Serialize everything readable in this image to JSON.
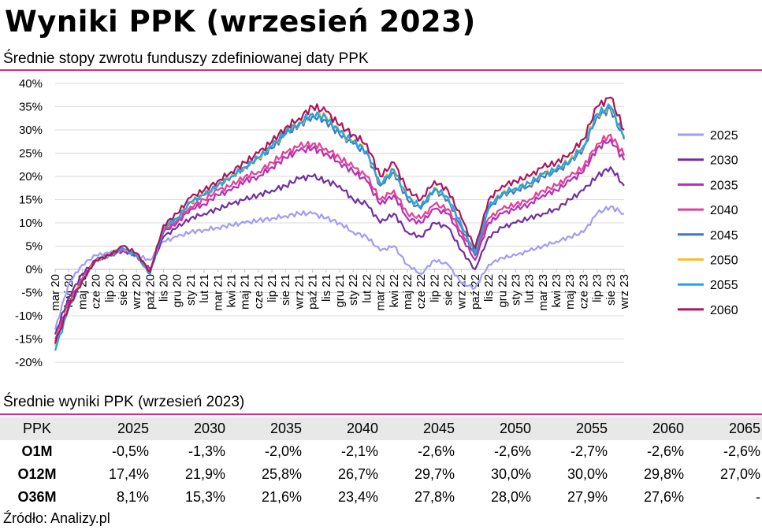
{
  "title": "Wyniki PPK (wrzesień 2023)",
  "subtitle": "Średnie stopy zwrotu funduszy zdefiniowanej daty PPK",
  "table_title": "Średnie wyniki PPK (wrzesień 2023)",
  "source": "Źródło: Analizy.pl",
  "colors": {
    "accent": "#e0278c",
    "header_bg": "#e8e8e8",
    "grid": "#d9d9d9"
  },
  "table": {
    "header": [
      "PPK",
      "2025",
      "2030",
      "2035",
      "2040",
      "2045",
      "2050",
      "2055",
      "2060",
      "2065"
    ],
    "rows": [
      [
        "O1M",
        "-0,5%",
        "-1,3%",
        "-2,0%",
        "-2,1%",
        "-2,6%",
        "-2,6%",
        "-2,7%",
        "-2,6%",
        "-2,6%"
      ],
      [
        "O12M",
        "17,4%",
        "21,9%",
        "25,8%",
        "26,7%",
        "29,7%",
        "30,0%",
        "30,0%",
        "29,8%",
        "27,0%"
      ],
      [
        "O36M",
        "8,1%",
        "15,3%",
        "21,6%",
        "23,4%",
        "27,8%",
        "28,0%",
        "27,9%",
        "27,6%",
        "-"
      ]
    ]
  },
  "chart_data": {
    "type": "line",
    "ylim": [
      -20,
      40
    ],
    "grid": true,
    "legend": "right",
    "y_ticks": [
      "40%",
      "35%",
      "30%",
      "25%",
      "20%",
      "15%",
      "10%",
      "5%",
      "0%",
      "-5%",
      "-10%",
      "-15%",
      "-20%"
    ],
    "x_ticks": [
      "mar 20",
      "kwi 20",
      "maj 20",
      "cze 20",
      "lip 20",
      "sie 20",
      "wrz 20",
      "paź 20",
      "lis 20",
      "gru 20",
      "sty 21",
      "lut 21",
      "mar 21",
      "kwi 21",
      "maj 21",
      "cze 21",
      "lip 21",
      "sie 21",
      "wrz 21",
      "paź 21",
      "lis 21",
      "gru 21",
      "sty 22",
      "lut 22",
      "mar 22",
      "kwi 22",
      "maj 22",
      "cze 22",
      "lip 22",
      "sie 22",
      "wrz 22",
      "paź 22",
      "lis 22",
      "gru 22",
      "sty 23",
      "lut 23",
      "mar 23",
      "kwi 23",
      "maj 23",
      "cze 23",
      "lip 23",
      "sie 23",
      "wrz 23"
    ],
    "x": [
      "mar 20",
      "kwi 20",
      "maj 20",
      "cze 20",
      "lip 20",
      "sie 20",
      "wrz 20",
      "paź 20",
      "lis 20",
      "gru 20",
      "sty 21",
      "lut 21",
      "mar 21",
      "kwi 21",
      "maj 21",
      "cze 21",
      "lip 21",
      "sie 21",
      "wrz 21",
      "paź 21",
      "lis 21",
      "gru 21",
      "sty 22",
      "lut 22",
      "mar 22",
      "kwi 22",
      "maj 22",
      "cze 22",
      "lip 22",
      "sie 22",
      "wrz 22",
      "paź 22",
      "lis 22",
      "gru 22",
      "sty 23",
      "lut 23",
      "mar 23",
      "kwi 23",
      "maj 23",
      "cze 23",
      "lip 23",
      "sie 23",
      "wrz 23"
    ],
    "series": [
      {
        "name": "2025",
        "color": "#a19cf5",
        "values": [
          -13,
          -3,
          1,
          3,
          3.5,
          4,
          3,
          2,
          6,
          7,
          8,
          8.5,
          9,
          9.5,
          10,
          10.5,
          11,
          11.5,
          12,
          12,
          11,
          10,
          8,
          7,
          4,
          5,
          1,
          -1,
          2,
          1,
          -3,
          -4,
          1,
          2.5,
          3,
          4,
          5,
          6,
          7,
          8,
          12,
          13.5,
          12
        ]
      },
      {
        "name": "2030",
        "color": "#7030a0",
        "values": [
          -14,
          -6,
          -1,
          2,
          3,
          4,
          3,
          0,
          7,
          9,
          11,
          12,
          13,
          14,
          15,
          16,
          17,
          18,
          19.5,
          20,
          19,
          18,
          15,
          14,
          10,
          12,
          8,
          7,
          10,
          9,
          4,
          0,
          7,
          9,
          10,
          11,
          12,
          13,
          15,
          17,
          20,
          22,
          18
        ]
      },
      {
        "name": "2035",
        "color": "#b42fb3",
        "values": [
          -15,
          -7,
          -2,
          2,
          3,
          4,
          3,
          -0.5,
          8,
          10,
          13,
          14,
          16,
          17,
          19,
          20,
          22,
          24,
          25.5,
          26,
          25,
          23,
          21,
          19,
          14,
          16,
          11,
          10,
          13,
          12,
          7,
          2,
          10,
          12,
          13,
          14,
          16,
          17,
          19,
          21,
          26,
          28,
          23.5
        ]
      },
      {
        "name": "2040",
        "color": "#e43f9a",
        "values": [
          -15.5,
          -7.5,
          -2,
          2,
          3,
          4.5,
          3,
          -0.5,
          8.5,
          10.5,
          13.5,
          15,
          17,
          18,
          20,
          21,
          23,
          25,
          26.5,
          27,
          26,
          24,
          22,
          20,
          15,
          17,
          12,
          11,
          14,
          13,
          8,
          3,
          11,
          13,
          14,
          15,
          17,
          18,
          20,
          22,
          27,
          29,
          24.5
        ]
      },
      {
        "name": "2045",
        "color": "#3e77c4",
        "values": [
          -16.5,
          -8,
          -2.5,
          2,
          3,
          4.5,
          3,
          -1,
          9,
          11,
          14.5,
          16,
          18,
          20,
          22,
          24,
          26,
          29,
          31,
          33,
          32,
          29,
          27,
          25,
          18,
          21,
          15,
          13,
          17,
          15,
          9,
          3,
          13,
          16,
          17,
          18,
          20,
          21,
          23,
          26,
          33,
          34.5,
          28
        ]
      },
      {
        "name": "2050",
        "color": "#f6c02c",
        "values": [
          -16.5,
          -8,
          -2.5,
          2,
          3,
          4.5,
          3,
          -1,
          9,
          11,
          14.5,
          16,
          18,
          20,
          22,
          24,
          26.5,
          29.5,
          31.5,
          33.5,
          33,
          29.5,
          27.5,
          25.5,
          18.5,
          21.5,
          15.5,
          13.5,
          17.5,
          15.5,
          9.5,
          3.5,
          13.5,
          16.5,
          17.5,
          18.5,
          20.5,
          21.5,
          23.5,
          26.5,
          33.5,
          35,
          28.5
        ]
      },
      {
        "name": "2055",
        "color": "#1da6e8",
        "values": [
          -17.5,
          -8.5,
          -2.5,
          2,
          3,
          4.5,
          3,
          -1,
          9,
          11,
          14.5,
          16,
          18,
          20,
          22,
          24,
          26.5,
          29.5,
          31.5,
          33.5,
          32.5,
          29.5,
          27.5,
          25.5,
          18.5,
          21.5,
          15.5,
          13.5,
          17.5,
          15.5,
          9.5,
          3.5,
          13.5,
          16.5,
          17.5,
          18.5,
          20.5,
          21.5,
          23.5,
          26.5,
          33.5,
          35,
          28.5
        ]
      },
      {
        "name": "2060",
        "color": "#b0135a",
        "values": [
          -16,
          -8,
          -2.5,
          2,
          3,
          5,
          3.5,
          -0.5,
          9.5,
          12,
          15.5,
          17,
          19,
          21,
          23,
          25,
          27.5,
          30.5,
          32.5,
          35,
          34,
          31,
          29,
          27,
          20,
          23,
          17,
          15,
          19,
          17,
          11,
          4.5,
          15,
          18,
          19,
          20,
          22,
          23,
          25,
          28,
          35,
          37,
          30
        ]
      }
    ]
  }
}
